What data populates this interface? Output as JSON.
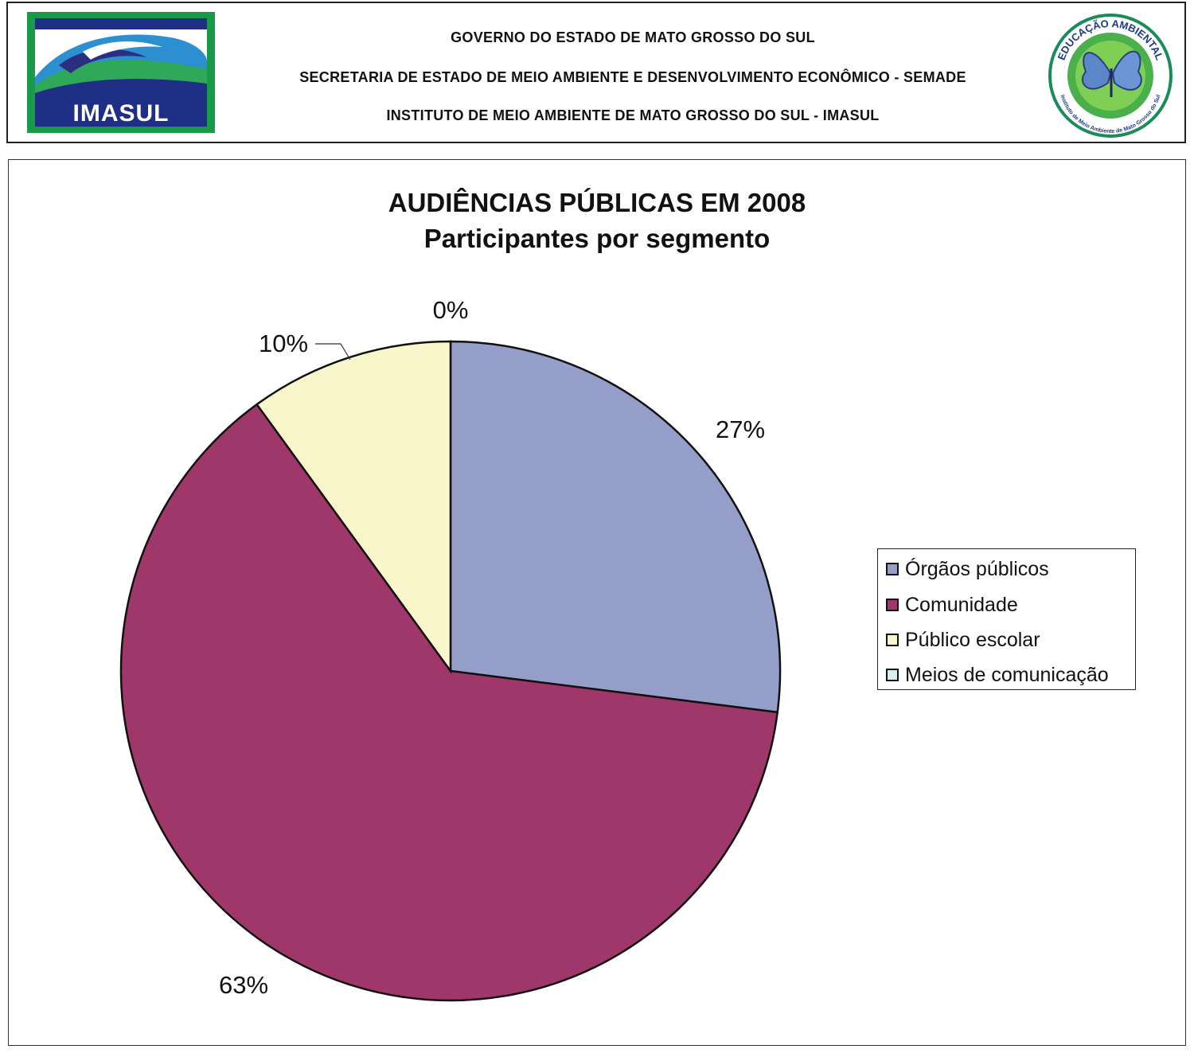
{
  "header": {
    "line1": "GOVERNO DO ESTADO DE MATO GROSSO DO SUL",
    "line2": "SECRETARIA DE ESTADO DE MEIO AMBIENTE E DESENVOLVIMENTO ECONÔMICO - SEMADE",
    "line3": "INSTITUTO DE MEIO AMBIENTE DE MATO GROSSO DO SUL - IMASUL",
    "logo_left_text": "IMASUL",
    "logo_right_text_top": "EDUCAÇÃO AMBIENTAL",
    "logo_right_text_bottom": "Instituto de Meio Ambiente de Mato Grosso do Sul"
  },
  "chart_data": {
    "type": "pie",
    "title": "AUDIÊNCIAS PÚBLICAS EM 2008",
    "subtitle": "Participantes por segmento",
    "categories": [
      "Órgãos públicos",
      "Comunidade",
      "Público escolar",
      "Meios de comunicação"
    ],
    "values": [
      27,
      63,
      10,
      0
    ],
    "value_labels": [
      "27%",
      "63%",
      "10%",
      "0%"
    ],
    "colors": [
      "#959ec9",
      "#a0376a",
      "#faf6cc",
      "#d7eef0"
    ],
    "legend_position": "right"
  }
}
